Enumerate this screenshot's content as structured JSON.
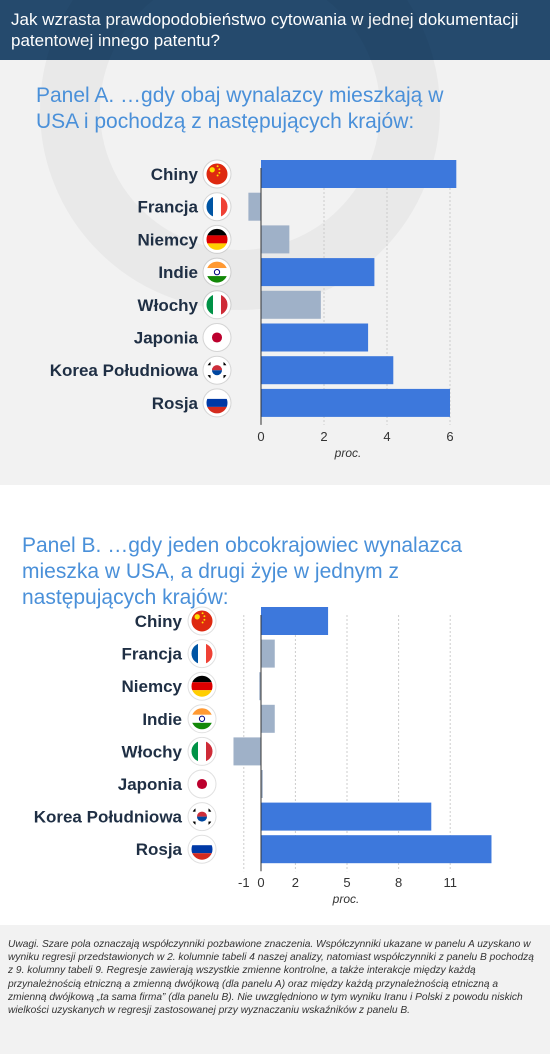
{
  "title": "Jak wzrasta prawdopodobieństwo cytowania w jednej dokumentacji patentowej innego patentu?",
  "colors": {
    "significant": "#3d78dc",
    "insignificant": "#9fb1c8",
    "title_bg": "#254a6d",
    "heading": "#4a90d9"
  },
  "chart_data": [
    {
      "type": "bar",
      "orientation": "horizontal",
      "title": "Panel A. …gdy obaj wynalazcy mieszkają w USA i pochodzą z następujących krajów:",
      "xlabel": "proc.",
      "categories": [
        "Chiny",
        "Francja",
        "Niemcy",
        "Indie",
        "Włochy",
        "Japonia",
        "Korea Południowa",
        "Rosja"
      ],
      "flags": [
        "china-flag-icon",
        "france-flag-icon",
        "germany-flag-icon",
        "india-flag-icon",
        "italy-flag-icon",
        "japan-flag-icon",
        "south-korea-flag-icon",
        "russia-flag-icon"
      ],
      "values": [
        6.2,
        -0.4,
        0.9,
        3.6,
        1.9,
        3.4,
        4.2,
        6.0
      ],
      "significant": [
        true,
        false,
        false,
        true,
        false,
        true,
        true,
        true
      ],
      "xticks": [
        0,
        2,
        4,
        6
      ],
      "xlim": [
        -0.6,
        6.8
      ]
    },
    {
      "type": "bar",
      "orientation": "horizontal",
      "title": "Panel B. …gdy jeden obcokrajowiec wynalazca mieszka w USA, a drugi żyje w jednym z następujących krajów:",
      "xlabel": "proc.",
      "categories": [
        "Chiny",
        "Francja",
        "Niemcy",
        "Indie",
        "Włochy",
        "Japonia",
        "Korea Południowa",
        "Rosja"
      ],
      "flags": [
        "china-flag-icon",
        "france-flag-icon",
        "germany-flag-icon",
        "india-flag-icon",
        "italy-flag-icon",
        "japan-flag-icon",
        "south-korea-flag-icon",
        "russia-flag-icon"
      ],
      "values": [
        3.9,
        0.8,
        -0.1,
        0.8,
        -1.6,
        0.1,
        9.9,
        13.4
      ],
      "significant": [
        true,
        false,
        false,
        false,
        false,
        false,
        true,
        true
      ],
      "xticks": [
        -1,
        0,
        2,
        5,
        8,
        11
      ],
      "xlim": [
        -1.9,
        14.0
      ]
    }
  ],
  "note": "Uwagi. Szare pola oznaczają współczynniki pozbawione znaczenia. Współczynniki ukazane w panelu A uzyskano w wyniku regresji przedstawionych w 2. kolumnie tabeli 4 naszej analizy, natomiast współczynniki z panelu B pochodzą z 9. kolumny tabeli 9. Regresje zawierają wszystkie zmienne kontrolne, a także interakcje między każdą przynależnością etniczną a zmienną dwójkową (dla panelu A) oraz między każdą przynależnością etniczną a zmienną dwójkową „ta sama firma” (dla panelu B). Nie uwzględniono w tym wyniku Iranu i Polski z powodu niskich wielkości uzyskanych w regresji zastosowanej przy wyznaczaniu wskaźników z panelu B."
}
